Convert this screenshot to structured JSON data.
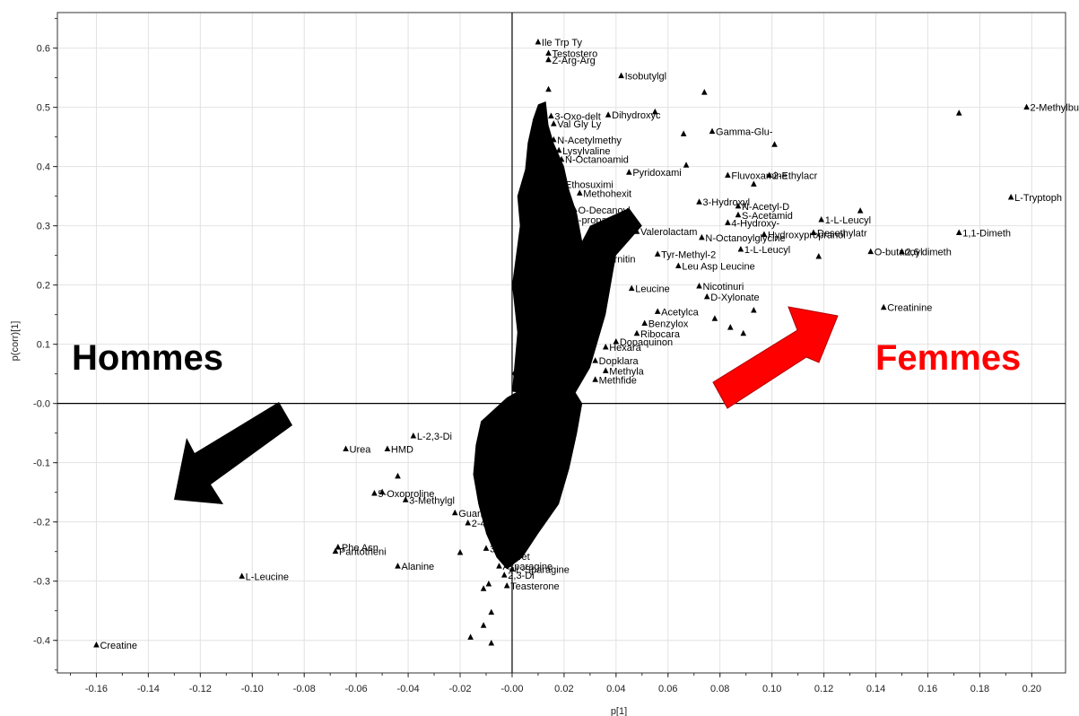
{
  "chart_data": {
    "type": "scatter",
    "title": "",
    "xlabel": "p[1]",
    "ylabel": "p(corr)[1]",
    "xlim": [
      -0.175,
      0.213
    ],
    "ylim": [
      -0.455,
      0.66
    ],
    "xticks": [
      -0.16,
      -0.14,
      -0.12,
      -0.1,
      -0.08,
      -0.06,
      -0.04,
      -0.02,
      0.0,
      0.02,
      0.04,
      0.06,
      0.08,
      0.1,
      0.12,
      0.14,
      0.16,
      0.18,
      0.2
    ],
    "xtick_labels": [
      "-0.16",
      "-0.14",
      "-0.12",
      "-0.10",
      "-0.08",
      "-0.06",
      "-0.04",
      "-0.02",
      "-0.00",
      "0.02",
      "0.04",
      "0.06",
      "0.08",
      "0.10",
      "0.12",
      "0.14",
      "0.16",
      "0.18",
      "0.20"
    ],
    "yticks": [
      0.6,
      0.5,
      0.4,
      0.3,
      0.2,
      0.1,
      0.0,
      -0.1,
      -0.2,
      -0.3,
      -0.4
    ],
    "ytick_labels": [
      "0.6",
      "0.5",
      "0.4",
      "0.3",
      "0.2",
      "0.1",
      "-0.0",
      "-0.1",
      "-0.2",
      "-0.3",
      "-0.4"
    ],
    "grid": true,
    "marker_color": "#000000",
    "points": [
      {
        "x": 0.01,
        "y": 0.61,
        "label": "Ile Trp Ty"
      },
      {
        "x": 0.014,
        "y": 0.591,
        "label": "Testostero"
      },
      {
        "x": 0.014,
        "y": 0.58,
        "label": "Z-Arg-Arg"
      },
      {
        "x": 0.042,
        "y": 0.553,
        "label": "Isobutylgl"
      },
      {
        "x": 0.074,
        "y": 0.525,
        "label": ""
      },
      {
        "x": 0.014,
        "y": 0.53,
        "label": ""
      },
      {
        "x": 0.172,
        "y": 0.49,
        "label": ""
      },
      {
        "x": 0.198,
        "y": 0.5,
        "label": "2-Methylbu"
      },
      {
        "x": 0.037,
        "y": 0.487,
        "label": "Dihydroxyc"
      },
      {
        "x": 0.055,
        "y": 0.492,
        "label": ""
      },
      {
        "x": 0.015,
        "y": 0.485,
        "label": "3-Oxo-delt"
      },
      {
        "x": 0.016,
        "y": 0.472,
        "label": "Val Gly Ly"
      },
      {
        "x": 0.077,
        "y": 0.459,
        "label": "Gamma-Glu-"
      },
      {
        "x": 0.066,
        "y": 0.455,
        "label": ""
      },
      {
        "x": 0.101,
        "y": 0.437,
        "label": ""
      },
      {
        "x": 0.016,
        "y": 0.445,
        "label": "N-Acetylmethy"
      },
      {
        "x": 0.018,
        "y": 0.427,
        "label": "Lysylvaline"
      },
      {
        "x": 0.019,
        "y": 0.412,
        "label": "N-Octanoamid"
      },
      {
        "x": 0.045,
        "y": 0.39,
        "label": "Pyridoxami"
      },
      {
        "x": 0.067,
        "y": 0.402,
        "label": ""
      },
      {
        "x": 0.083,
        "y": 0.385,
        "label": "Fluvoxamine"
      },
      {
        "x": 0.099,
        "y": 0.385,
        "label": "2-Ethylacr"
      },
      {
        "x": 0.093,
        "y": 0.37,
        "label": ""
      },
      {
        "x": 0.019,
        "y": 0.37,
        "label": "Ethosuximi"
      },
      {
        "x": 0.026,
        "y": 0.355,
        "label": "Methohexit"
      },
      {
        "x": 0.072,
        "y": 0.34,
        "label": "3-Hydroxyl"
      },
      {
        "x": 0.087,
        "y": 0.333,
        "label": "N-Acetyl-D"
      },
      {
        "x": 0.024,
        "y": 0.327,
        "label": "O-Decanoyl"
      },
      {
        "x": 0.134,
        "y": 0.325,
        "label": ""
      },
      {
        "x": 0.192,
        "y": 0.348,
        "label": "L-Tryptoph"
      },
      {
        "x": 0.087,
        "y": 0.318,
        "label": "S-Acetamid"
      },
      {
        "x": 0.119,
        "y": 0.31,
        "label": "1-L-Leucyl"
      },
      {
        "x": 0.083,
        "y": 0.305,
        "label": "4-Hydroxy-"
      },
      {
        "x": 0.022,
        "y": 0.31,
        "label": "2-propanoy"
      },
      {
        "x": 0.172,
        "y": 0.288,
        "label": "1,1-Dimeth"
      },
      {
        "x": 0.116,
        "y": 0.288,
        "label": "Desethylatr"
      },
      {
        "x": 0.048,
        "y": 0.29,
        "label": "Valerolactam"
      },
      {
        "x": 0.073,
        "y": 0.28,
        "label": "N-Octanoylglycine"
      },
      {
        "x": 0.097,
        "y": 0.285,
        "label": "Hydroxypropranol"
      },
      {
        "x": 0.088,
        "y": 0.26,
        "label": "1-L-Leucyl"
      },
      {
        "x": 0.138,
        "y": 0.256,
        "label": "O-butanoyl"
      },
      {
        "x": 0.15,
        "y": 0.256,
        "label": "2,6 dimeth"
      },
      {
        "x": 0.118,
        "y": 0.248,
        "label": ""
      },
      {
        "x": 0.056,
        "y": 0.252,
        "label": "Tyr-Methyl-2"
      },
      {
        "x": 0.064,
        "y": 0.232,
        "label": "Leu Asp Leucine"
      },
      {
        "x": 0.033,
        "y": 0.244,
        "label": "Carnitin"
      },
      {
        "x": 0.072,
        "y": 0.198,
        "label": "Nicotinuri"
      },
      {
        "x": 0.075,
        "y": 0.18,
        "label": "D-Xylonate"
      },
      {
        "x": 0.046,
        "y": 0.194,
        "label": "Leucine"
      },
      {
        "x": 0.143,
        "y": 0.162,
        "label": "Creatinine"
      },
      {
        "x": 0.093,
        "y": 0.157,
        "label": ""
      },
      {
        "x": 0.056,
        "y": 0.155,
        "label": "Acetylca"
      },
      {
        "x": 0.078,
        "y": 0.143,
        "label": ""
      },
      {
        "x": 0.051,
        "y": 0.135,
        "label": "Benzylox"
      },
      {
        "x": 0.048,
        "y": 0.118,
        "label": "Ribocara"
      },
      {
        "x": 0.04,
        "y": 0.104,
        "label": "Dopaquinon"
      },
      {
        "x": 0.084,
        "y": 0.128,
        "label": ""
      },
      {
        "x": 0.089,
        "y": 0.118,
        "label": ""
      },
      {
        "x": 0.036,
        "y": 0.095,
        "label": "Hexara"
      },
      {
        "x": 0.032,
        "y": 0.072,
        "label": "Dopklara"
      },
      {
        "x": 0.036,
        "y": 0.055,
        "label": "Methyla"
      },
      {
        "x": 0.032,
        "y": 0.04,
        "label": "Methfide"
      },
      {
        "x": -0.038,
        "y": -0.055,
        "label": "L-2,3-Di"
      },
      {
        "x": -0.064,
        "y": -0.077,
        "label": "Urea"
      },
      {
        "x": -0.048,
        "y": -0.077,
        "label": "HMD"
      },
      {
        "x": -0.044,
        "y": -0.123,
        "label": ""
      },
      {
        "x": -0.05,
        "y": -0.15,
        "label": ""
      },
      {
        "x": -0.053,
        "y": -0.152,
        "label": "5-Oxoproline"
      },
      {
        "x": -0.041,
        "y": -0.163,
        "label": "3-Methylgl"
      },
      {
        "x": -0.022,
        "y": -0.185,
        "label": "Guan"
      },
      {
        "x": -0.017,
        "y": -0.202,
        "label": "2-4"
      },
      {
        "x": -0.067,
        "y": -0.243,
        "label": "Phe Asn"
      },
      {
        "x": -0.068,
        "y": -0.25,
        "label": "Pantotheni"
      },
      {
        "x": -0.044,
        "y": -0.275,
        "label": "Alanine"
      },
      {
        "x": -0.02,
        "y": -0.252,
        "label": ""
      },
      {
        "x": -0.01,
        "y": -0.245,
        "label": "3-"
      },
      {
        "x": -0.003,
        "y": -0.258,
        "label": "5-Tet"
      },
      {
        "x": -0.005,
        "y": -0.275,
        "label": "Asparagine"
      },
      {
        "x": 0.0,
        "y": -0.28,
        "label": "L-Sparagine"
      },
      {
        "x": -0.003,
        "y": -0.29,
        "label": "2,3-Di"
      },
      {
        "x": -0.104,
        "y": -0.292,
        "label": "L-Leucine"
      },
      {
        "x": -0.002,
        "y": -0.308,
        "label": "Teasterone"
      },
      {
        "x": -0.009,
        "y": -0.305,
        "label": ""
      },
      {
        "x": -0.011,
        "y": -0.313,
        "label": ""
      },
      {
        "x": -0.008,
        "y": -0.353,
        "label": ""
      },
      {
        "x": -0.011,
        "y": -0.375,
        "label": ""
      },
      {
        "x": -0.016,
        "y": -0.395,
        "label": ""
      },
      {
        "x": -0.008,
        "y": -0.405,
        "label": ""
      },
      {
        "x": -0.16,
        "y": -0.408,
        "label": "Creatine"
      }
    ],
    "annotations": {
      "left_text": "Hommes",
      "right_text": "Femmes",
      "left_color": "#000000",
      "right_color": "#ff0000",
      "dense_cluster_color": "#000000"
    }
  }
}
